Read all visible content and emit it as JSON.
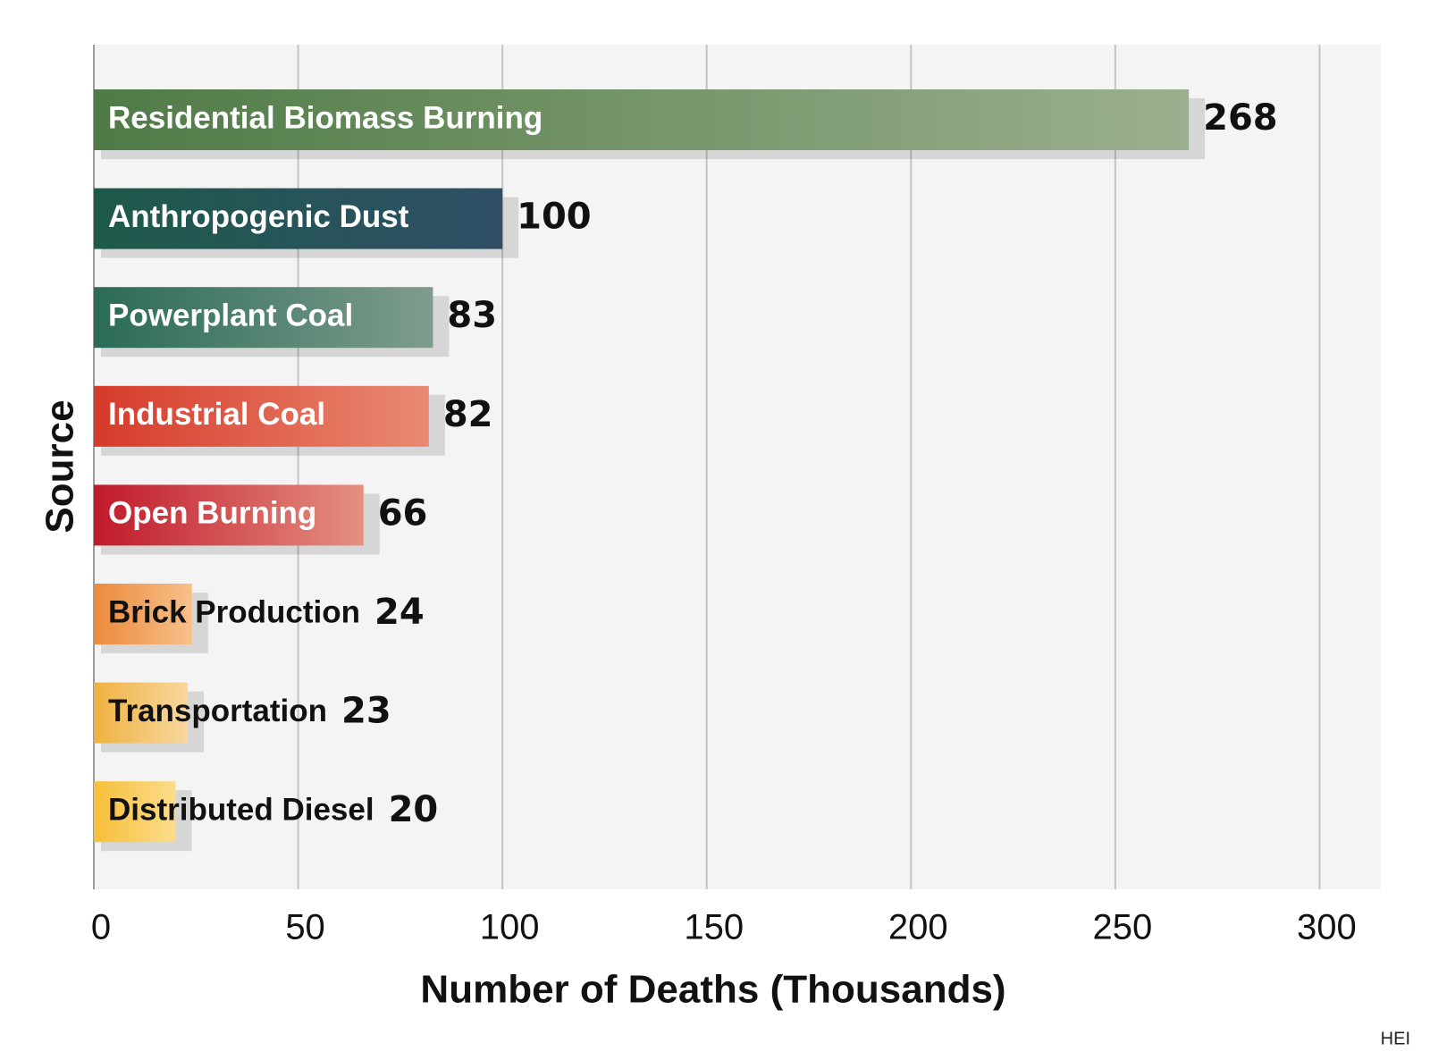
{
  "chart_data": {
    "type": "bar",
    "orientation": "horizontal",
    "categories": [
      "Residential Biomass Burning",
      "Anthropogenic Dust",
      "Powerplant Coal",
      "Industrial Coal",
      "Open Burning",
      "Brick Production",
      "Transportation",
      "Distributed Diesel"
    ],
    "values": [
      268,
      100,
      83,
      82,
      66,
      24,
      23,
      20
    ],
    "value_labels": [
      "268",
      "100",
      "83",
      "82",
      "66",
      "24",
      "23",
      "20"
    ],
    "xlabel": "Number of Deaths (Thousands)",
    "ylabel": "Source",
    "xlim": [
      0,
      315
    ],
    "xticks": [
      0,
      50,
      100,
      150,
      200,
      250,
      300
    ],
    "xtick_labels": [
      "0",
      "50",
      "100",
      "150",
      "200",
      "250",
      "300"
    ],
    "grid": "vertical",
    "label_position": "inside-bar-left",
    "colors": [
      [
        "#4f7a46",
        "#9bb08e"
      ],
      [
        "#1d5a4a",
        "#2f4e66"
      ],
      [
        "#2a6b57",
        "#7f9c8c"
      ],
      [
        "#d63a2a",
        "#e98a72"
      ],
      [
        "#c0192b",
        "#e59080"
      ],
      [
        "#ec8a3c",
        "#f7c08a"
      ],
      [
        "#efb240",
        "#f8d79e"
      ],
      [
        "#f7bf3a",
        "#fbdc8a"
      ]
    ],
    "label_colors": [
      "#ffffff",
      "#ffffff",
      "#ffffff",
      "#ffffff",
      "#ffffff",
      "#111111",
      "#111111",
      "#111111"
    ],
    "credit": "HEI"
  }
}
